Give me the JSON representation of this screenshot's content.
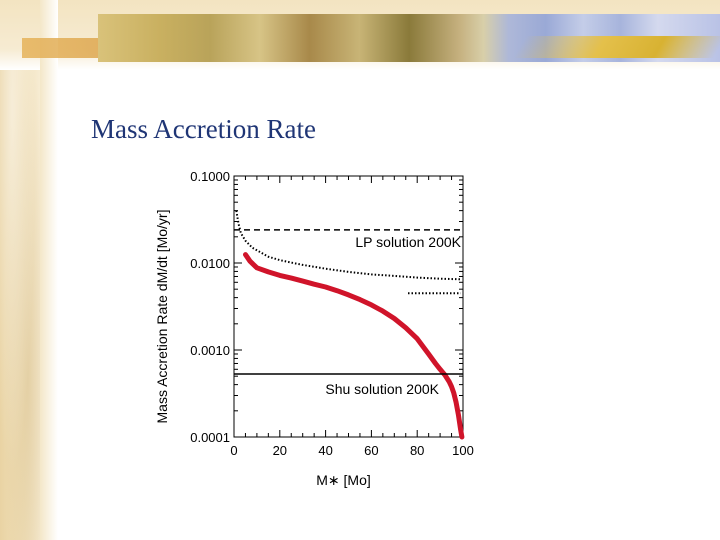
{
  "slide": {
    "title": "Mass Accretion Rate"
  },
  "colors": {
    "title": "#1f3575",
    "curve": "#d0142a",
    "axis": "#000000"
  },
  "chart_data": {
    "type": "line",
    "xlabel": "M∗ [Mo]",
    "ylabel": "Mass Accretion Rate  dM/dt  [Mo/yr]",
    "xlim": [
      0,
      100
    ],
    "ylim": [
      0.0001,
      0.1
    ],
    "yscale": "log",
    "xticks": [
      0,
      20,
      40,
      60,
      80,
      100
    ],
    "xtick_labels": [
      "0",
      "20",
      "40",
      "60",
      "80",
      "100"
    ],
    "yticks": [
      0.1,
      0.01,
      0.001,
      0.0001
    ],
    "ytick_labels": [
      "0.1000",
      "0.0100",
      "0.0010",
      "0.0001"
    ],
    "grid": false,
    "series": [
      {
        "style": "thick-solid",
        "color": "#d0142a",
        "x": [
          5,
          7,
          10,
          15,
          20,
          25,
          30,
          35,
          40,
          45,
          50,
          55,
          60,
          65,
          70,
          75,
          80,
          85,
          88,
          90,
          92,
          94,
          95,
          96,
          97,
          98,
          99,
          99.5
        ],
        "y": [
          0.0125,
          0.0105,
          0.0088,
          0.0079,
          0.0072,
          0.0067,
          0.0062,
          0.0057,
          0.0053,
          0.0048,
          0.0043,
          0.0038,
          0.0033,
          0.0028,
          0.0023,
          0.0018,
          0.00135,
          0.0009,
          0.0007,
          0.0006,
          0.00052,
          0.00043,
          0.00038,
          0.00032,
          0.00025,
          0.00018,
          0.00012,
          0.0001
        ]
      },
      {
        "style": "dotted",
        "color": "#000000",
        "x": [
          1,
          2,
          3,
          5,
          8,
          10,
          15,
          20,
          25,
          30,
          40,
          50,
          60,
          70,
          80,
          90,
          99
        ],
        "y": [
          0.04,
          0.028,
          0.022,
          0.018,
          0.015,
          0.014,
          0.0118,
          0.0108,
          0.0101,
          0.0095,
          0.0086,
          0.0079,
          0.0074,
          0.0071,
          0.0068,
          0.0066,
          0.0065
        ]
      },
      {
        "style": "dotted",
        "color": "#000000",
        "x": [
          76,
          99
        ],
        "y": [
          0.0045,
          0.0045
        ]
      },
      {
        "name": "LP solution 200K",
        "style": "dashed",
        "color": "#000000",
        "x": [
          0,
          100
        ],
        "y": [
          0.024,
          0.024
        ]
      },
      {
        "name": "Shu solution 200K",
        "style": "solid",
        "color": "#000000",
        "x": [
          0,
          100
        ],
        "y": [
          0.00053,
          0.00053
        ]
      }
    ]
  }
}
